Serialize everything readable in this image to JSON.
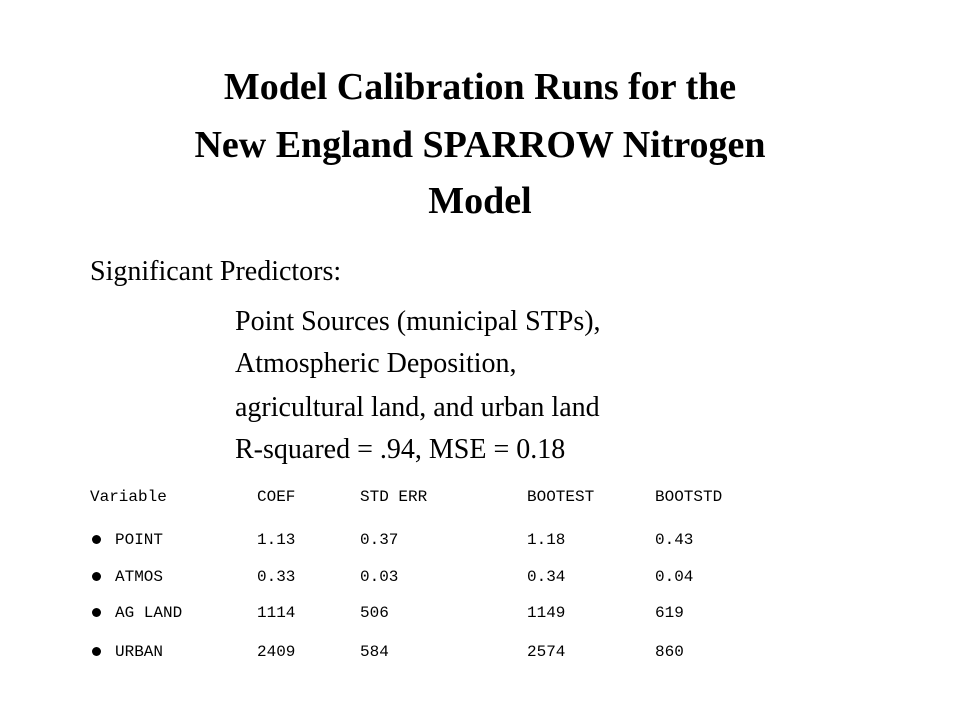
{
  "title": {
    "lines": [
      "Model Calibration Runs for the",
      "New England SPARROW Nitrogen",
      "Model"
    ]
  },
  "predictors": {
    "heading": "Significant Predictors:",
    "items": [
      "Point Sources (municipal STPs),",
      "Atmospheric Deposition,",
      "agricultural land, and urban land",
      "R-squared = .94, MSE = 0.18"
    ]
  },
  "table": {
    "header": [
      "Variable",
      "COEF",
      "STD ERR",
      "BOOTEST",
      "BOOTSTD"
    ],
    "rows": [
      [
        "POINT",
        "1.13",
        "0.37",
        "1.18",
        "0.43"
      ],
      [
        "ATMOS",
        "0.33",
        "0.03",
        "0.34",
        "0.04"
      ],
      [
        "AG LAND",
        "1114",
        "506",
        "1149",
        "619"
      ],
      [
        "URBAN",
        "2409",
        "584",
        "2574",
        "860"
      ]
    ]
  }
}
